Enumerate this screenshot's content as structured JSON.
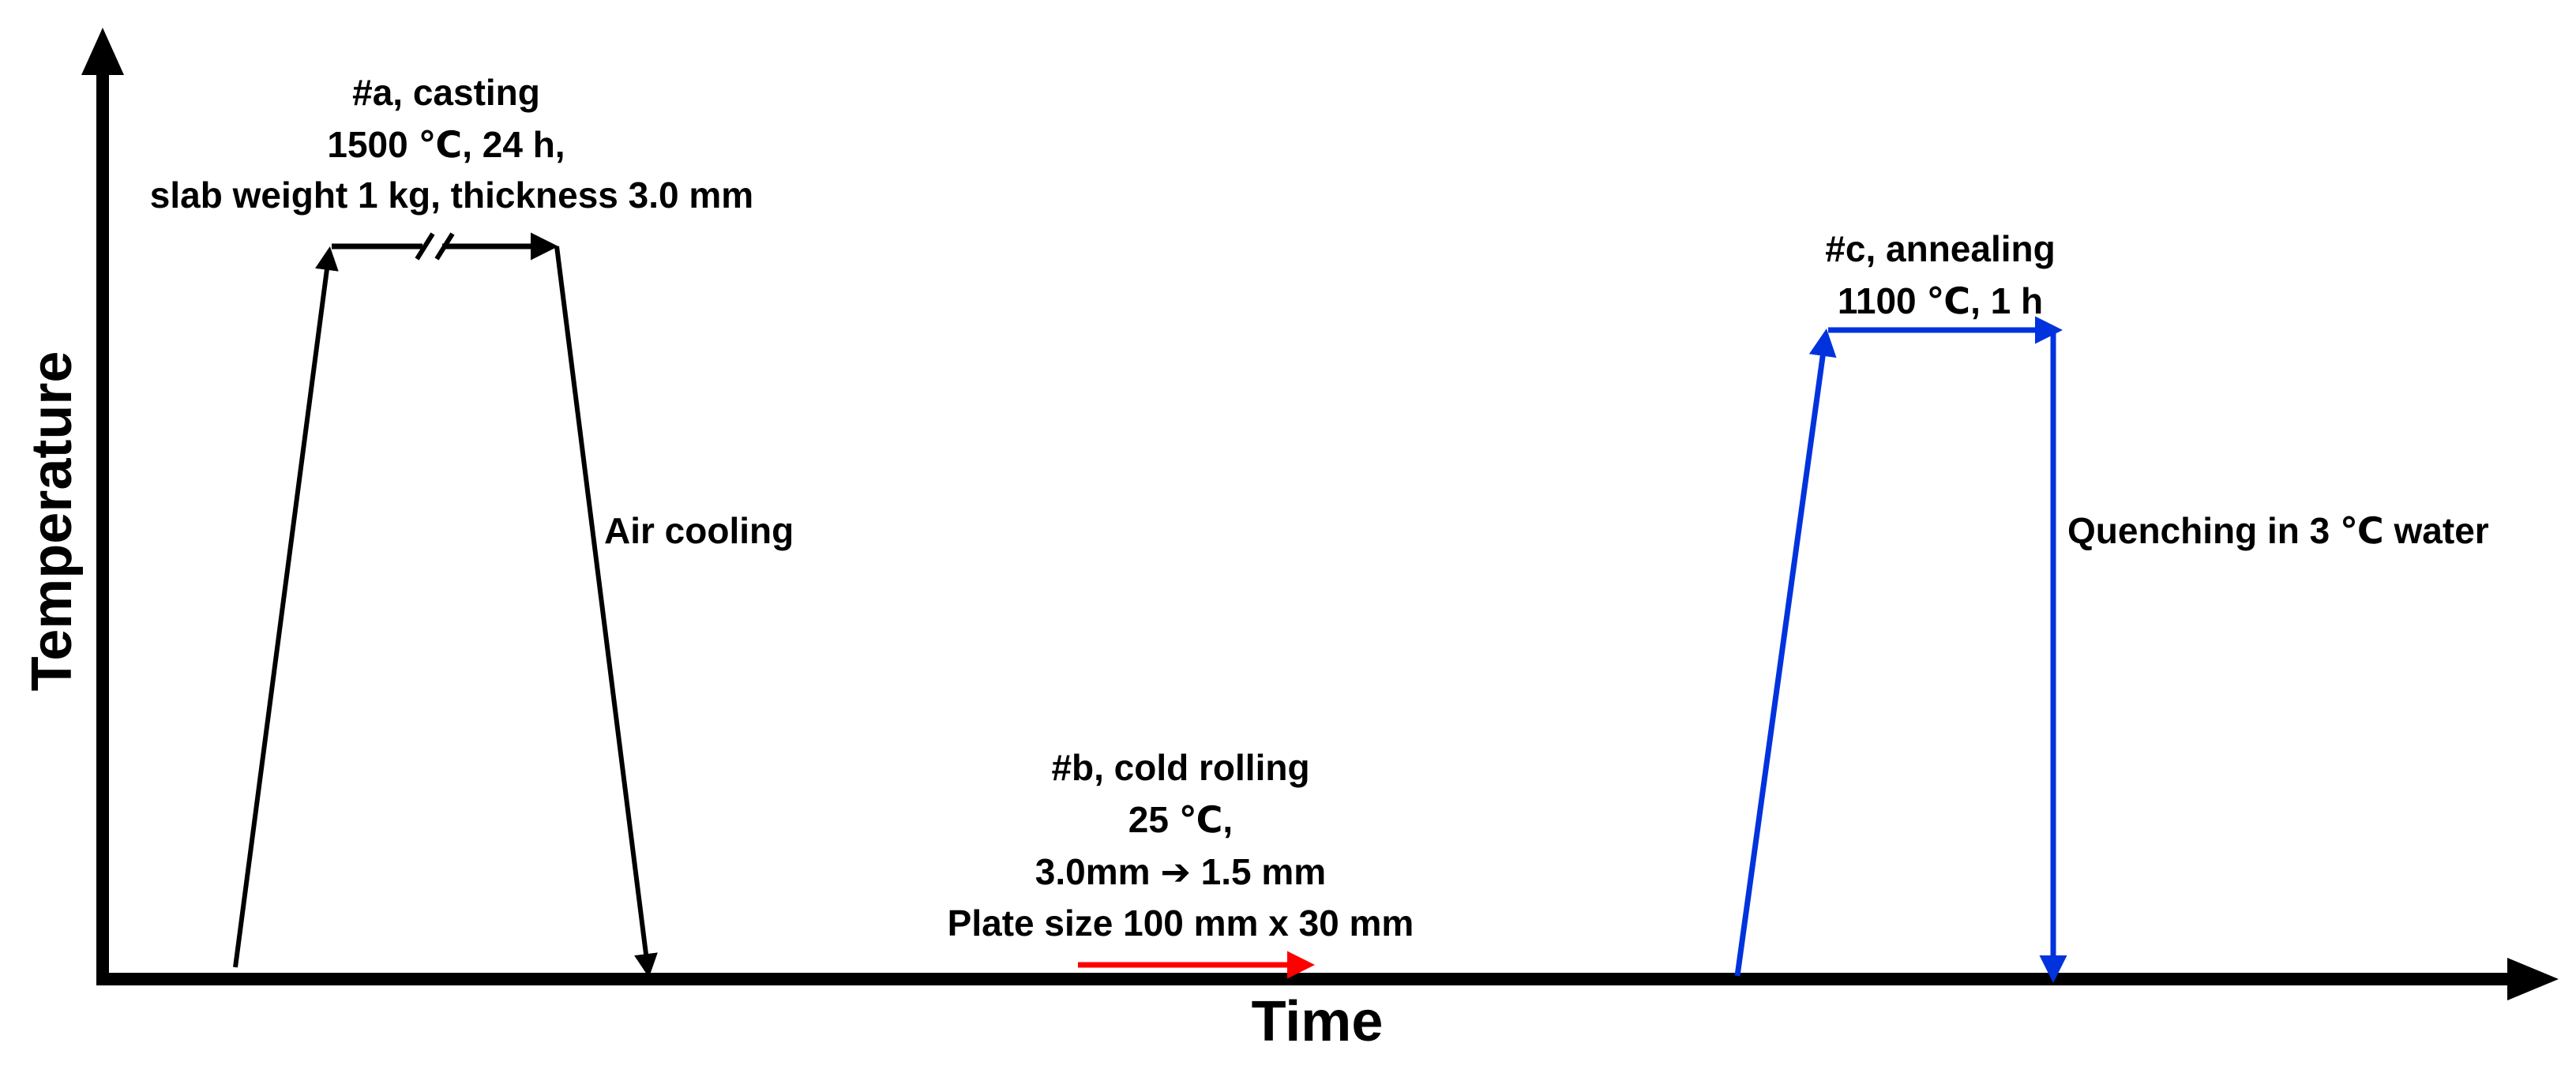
{
  "axes": {
    "x_label": "Time",
    "y_label": "Temperature"
  },
  "steps": {
    "casting": {
      "lines": [
        "#a, casting",
        "1500 ℃, 24 h,",
        "slab weight 1 kg, thickness 3.0 mm"
      ],
      "cooling_label": "Air cooling",
      "color": "#000000"
    },
    "cold_rolling": {
      "lines": [
        "#b, cold rolling",
        "25 ℃,",
        "3.0mm ➔ 1.5 mm",
        "Plate size 100 mm x 30 mm"
      ],
      "color": "#ff0000"
    },
    "annealing": {
      "lines": [
        "#c, annealing",
        "1100 ℃, 1 h"
      ],
      "cooling_label": "Quenching in 3 ℃ water",
      "color": "#0033dd"
    }
  }
}
